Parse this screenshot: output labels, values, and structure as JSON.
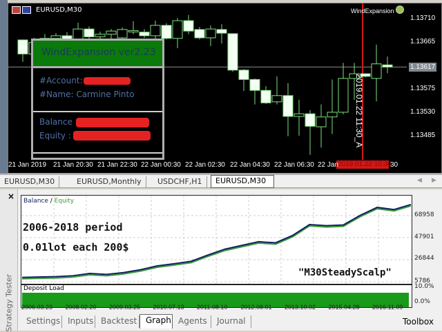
{
  "chart": {
    "title": "EURUSD,M30",
    "indicator_label": "WindExpansion",
    "price_axis": [
      "1.13710",
      "1.13665",
      "1.13575",
      "1.13530",
      "1.13485"
    ],
    "price_axis_values": [
      1.1371,
      1.13665,
      1.13575,
      1.1353,
      1.13485
    ],
    "current_price": "1.13617",
    "current_price_value": 1.13617,
    "time_axis": [
      "21 Jan 2019",
      "21 Jan 20:30",
      "21 Jan 22:30",
      "22 Jan 00:30",
      "22 Jan 02:30",
      "22 Jan 04:30",
      "22 Jan 06:30",
      "22 Jan",
      "30"
    ],
    "cursor_time_label": "2019.01.22 10:30",
    "vertical_label": "2019.01.22 11:30_A",
    "colors": {
      "candle": "#7ee07e",
      "background": "#000000",
      "cursor": "#d01818"
    },
    "candles": [
      [
        1.13669,
        1.1367,
        1.13627,
        1.13642
      ],
      [
        1.13642,
        1.13673,
        1.13633,
        1.13664
      ],
      [
        1.13664,
        1.1368,
        1.1365,
        1.13672
      ],
      [
        1.13672,
        1.13682,
        1.13655,
        1.13677
      ],
      [
        1.13677,
        1.13684,
        1.1366,
        1.13668
      ],
      [
        1.13668,
        1.13702,
        1.1366,
        1.1369
      ],
      [
        1.1369,
        1.13695,
        1.1367,
        1.13675
      ],
      [
        1.13675,
        1.13685,
        1.13665,
        1.1368
      ],
      [
        1.1368,
        1.1369,
        1.1367,
        1.13686
      ],
      [
        1.13673,
        1.13693,
        1.13669,
        1.13689
      ],
      [
        1.13685,
        1.13705,
        1.1368,
        1.13687
      ],
      [
        1.13684,
        1.1369,
        1.13673,
        1.13677
      ],
      [
        1.13677,
        1.13706,
        1.1367,
        1.13697
      ],
      [
        1.13697,
        1.13701,
        1.1367,
        1.13672
      ],
      [
        1.13672,
        1.13711,
        1.13653,
        1.13706
      ],
      [
        1.13706,
        1.13717,
        1.1368,
        1.13686
      ],
      [
        1.13689,
        1.13694,
        1.1367,
        1.13673
      ],
      [
        1.13673,
        1.13697,
        1.13657,
        1.1369
      ],
      [
        1.13689,
        1.13699,
        1.13662,
        1.13682
      ],
      [
        1.13681,
        1.13681,
        1.13608,
        1.13611
      ],
      [
        1.13611,
        1.13613,
        1.13571,
        1.13593
      ],
      [
        1.13593,
        1.13595,
        1.13545,
        1.13572
      ],
      [
        1.13572,
        1.1358,
        1.13546,
        1.13548
      ],
      [
        1.1355,
        1.13599,
        1.13545,
        1.13562
      ],
      [
        1.13562,
        1.13586,
        1.13484,
        1.13522
      ],
      [
        1.13522,
        1.13554,
        1.13485,
        1.13527
      ],
      [
        1.13527,
        1.13534,
        1.13448,
        1.13503
      ],
      [
        1.13502,
        1.13545,
        1.13462,
        1.13521
      ],
      [
        1.13521,
        1.13593,
        1.13488,
        1.1353
      ],
      [
        1.1353,
        1.13625,
        1.13526,
        1.13595
      ],
      [
        1.13595,
        1.13625,
        1.13554,
        1.13604
      ],
      [
        1.13604,
        1.13604,
        1.13597,
        1.13599
      ],
      [
        1.13595,
        1.1366,
        1.13551,
        1.13623
      ],
      [
        1.13621,
        1.13637,
        1.13605,
        1.13617
      ]
    ]
  },
  "panel": {
    "title": "WindExpansion ver2.23",
    "account": "#Account:",
    "name": "#Name: Carmine Pinto",
    "balance": "Balance :",
    "equity": "Equity :"
  },
  "chart_tabs": [
    "EURUSD,M30",
    "EURUSD,Monthly",
    "USDCHF,H1",
    "EURUSD,M30"
  ],
  "tester": {
    "side_label": "Strategy Tester",
    "close": "×",
    "legend_balance": "Balance",
    "legend_sep": " / ",
    "legend_equity": "Equity",
    "overlay1": "2006-2018 period",
    "overlay2": "0.01lot each 200$",
    "overlay3": "\"M30SteadyScalp\"",
    "y_axis": [
      "68958",
      "47901",
      "26844",
      "5786"
    ],
    "y_axis_values": [
      68958,
      47901,
      26844,
      5786
    ],
    "deposit_label": "Deposit Load",
    "deposit_axis": [
      "10.0%",
      "0.0%"
    ],
    "deposit_load_percent": 3.5,
    "dates": [
      "2006.03.23",
      "2008.02.20",
      "2009.03.25",
      "2010.07.13",
      "2011.08.10",
      "2012.08.01",
      "2013.10.02",
      "2015.04.28",
      "2016.11.09"
    ],
    "balance": [
      9900,
      10300,
      10600,
      11500,
      13700,
      12800,
      14500,
      17200,
      20900,
      23000,
      25300,
      31300,
      36900,
      40500,
      44000,
      43000,
      50000,
      60400,
      59300,
      60000,
      69200,
      76800,
      74700,
      79500
    ],
    "colors": {
      "balance": "#102060",
      "equity": "#3a9a3a",
      "deposit": "#1a9a1a"
    },
    "tabs": [
      "Settings",
      "Inputs",
      "Backtest",
      "Graph",
      "Agents",
      "Journal"
    ],
    "active_tab": "Graph",
    "toolbox": "Toolbox"
  }
}
